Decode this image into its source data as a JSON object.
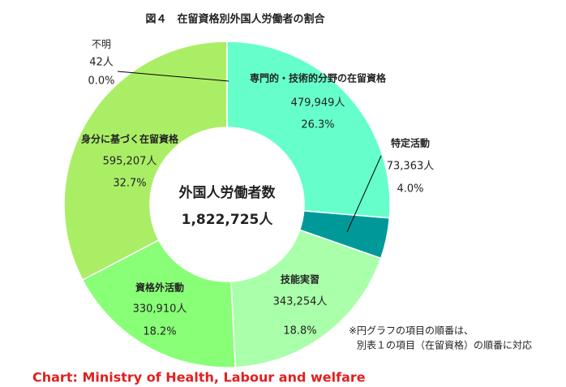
{
  "chart_data": {
    "type": "pie",
    "title": "図４　在留資格別外国人労働者の割合",
    "categories": [
      "専門的・技術的分野の在留資格",
      "特定活動",
      "技能実習",
      "資格外活動",
      "身分に基づく在留資格",
      "不明"
    ],
    "values": [
      479949,
      73363,
      343254,
      330910,
      595207,
      42
    ],
    "value_labels": [
      "479,949人",
      "73,363人",
      "343,254人",
      "330,910人",
      "595,207人",
      "42人"
    ],
    "percents": [
      26.3,
      4.0,
      18.8,
      18.2,
      32.7,
      0.0
    ],
    "percent_labels": [
      "26.3%",
      "4.0%",
      "18.8%",
      "18.2%",
      "32.7%",
      "0.0%"
    ],
    "colors": [
      "#66ffcc",
      "#009999",
      "#aaffaa",
      "#88ff77",
      "#aaee66",
      "#aaee66"
    ],
    "center_title": "外国人労働者数",
    "total": 1822725,
    "total_label": "1,822,725人",
    "notes": [
      "※円グラフの項目の順番は、",
      "別表１の項目（在留資格）の順番に対応"
    ],
    "source": "Chart: Ministry of Health, Labour and welfare"
  }
}
